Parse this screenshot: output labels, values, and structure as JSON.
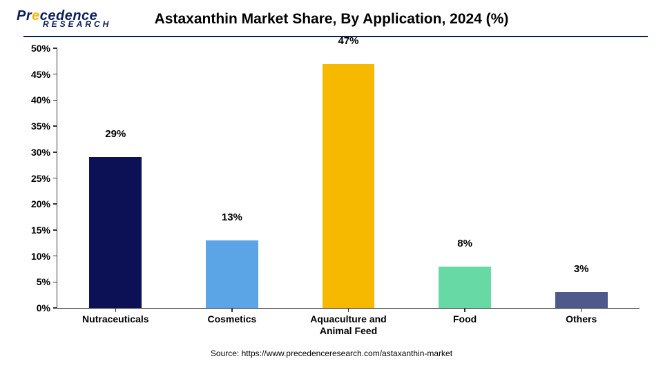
{
  "logo": {
    "line1_pre": "Pr",
    "line1_dot": "e",
    "line1_post": "cedence",
    "line2": "RESEARCH"
  },
  "chart": {
    "type": "bar",
    "title": "Astaxanthin Market Share, By Application, 2024 (%)",
    "title_fontsize": 21,
    "title_color": "#000000",
    "background_color": "#ffffff",
    "border_color": "#0b1f5b",
    "axis_color": "#333333",
    "categories": [
      "Nutraceuticals",
      "Cosmetics",
      "Aquaculture and\nAnimal Feed",
      "Food",
      "Others"
    ],
    "values": [
      29,
      13,
      47,
      8,
      3
    ],
    "value_labels": [
      "29%",
      "13%",
      "47%",
      "8%",
      "3%"
    ],
    "bar_colors": [
      "#0b1154",
      "#5ba4e5",
      "#f6b900",
      "#66d9a5",
      "#4e598c"
    ],
    "ylim": [
      0,
      50
    ],
    "ytick_step": 5,
    "ytick_labels": [
      "0%",
      "5%",
      "10%",
      "15%",
      "20%",
      "25%",
      "30%",
      "35%",
      "40%",
      "45%",
      "50%"
    ],
    "ylabel_fontsize": 14,
    "xlabel_fontsize": 14,
    "datalabel_fontsize": 15,
    "bar_width_pct": 9,
    "source": "Source: https://www.precedenceresearch.com/astaxanthin-market",
    "source_fontsize": 12
  }
}
